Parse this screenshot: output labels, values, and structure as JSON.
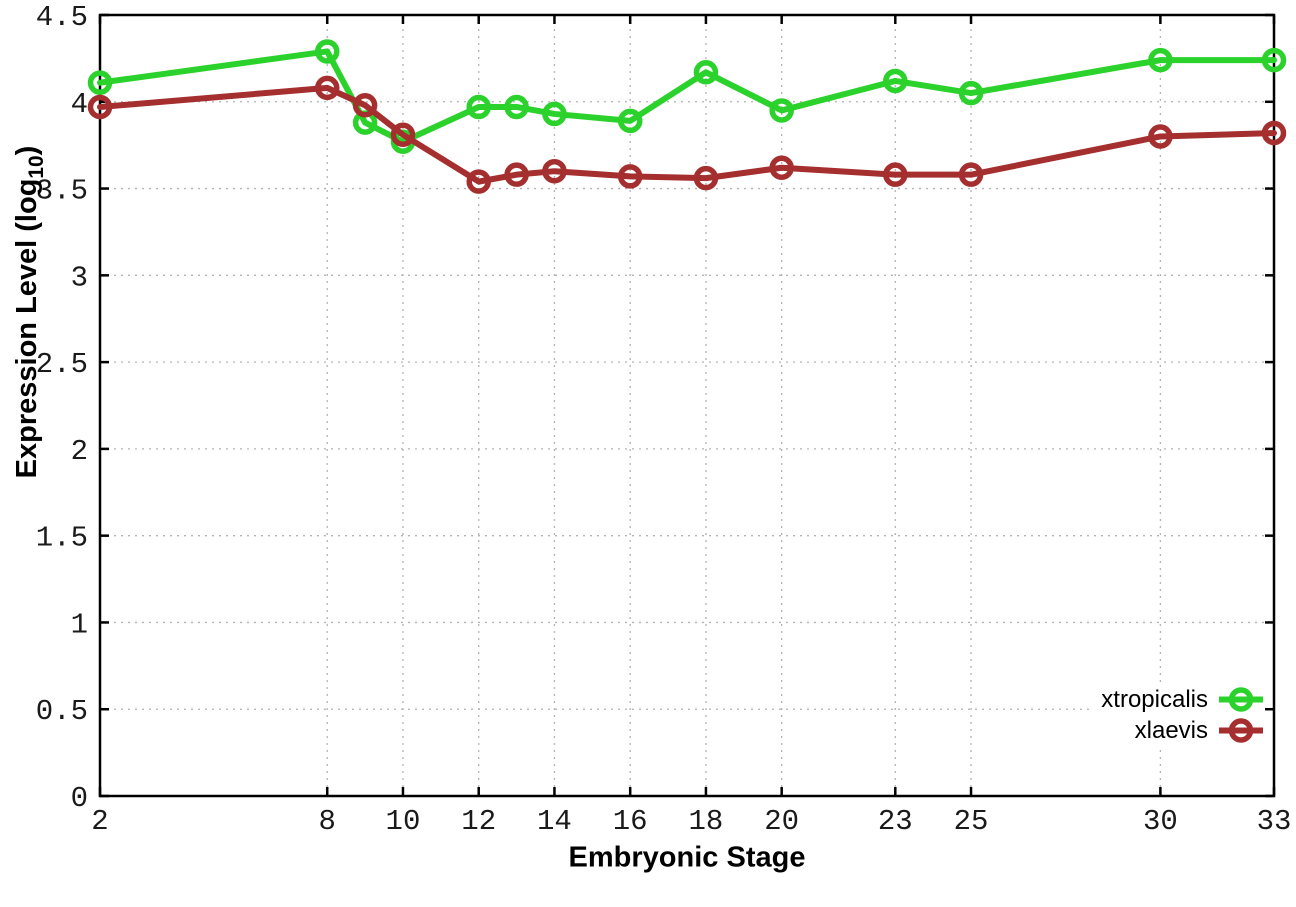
{
  "chart_data": {
    "type": "line",
    "title": "",
    "xlabel": "Embryonic Stage",
    "ylabel": "Expression Level (log10)",
    "ylabel_parts": {
      "main": "Expression Level (log",
      "sub": "10",
      "close": ")"
    },
    "x": [
      2,
      8,
      9,
      10,
      12,
      13,
      14,
      16,
      18,
      20,
      23,
      25,
      30,
      33
    ],
    "xticks": [
      2,
      8,
      10,
      12,
      14,
      16,
      18,
      20,
      23,
      25,
      30,
      33
    ],
    "yticks": [
      0,
      0.5,
      1,
      1.5,
      2,
      2.5,
      3,
      3.5,
      4,
      4.5
    ],
    "xlim": [
      2,
      33
    ],
    "ylim": [
      0,
      4.5
    ],
    "grid": true,
    "legend_position": "inside-bottom-right",
    "series": [
      {
        "name": "xtropicalis",
        "color": "#2bd22b",
        "marker": "open-circle",
        "values": [
          4.11,
          4.29,
          3.88,
          3.77,
          3.97,
          3.97,
          3.93,
          3.89,
          4.17,
          3.95,
          4.12,
          4.05,
          4.24,
          4.24
        ]
      },
      {
        "name": "xlaevis",
        "color": "#a52e2e",
        "marker": "open-circle",
        "values": [
          3.97,
          4.08,
          3.98,
          3.81,
          3.54,
          3.58,
          3.6,
          3.57,
          3.56,
          3.62,
          3.58,
          3.58,
          3.8,
          3.82
        ]
      }
    ]
  }
}
